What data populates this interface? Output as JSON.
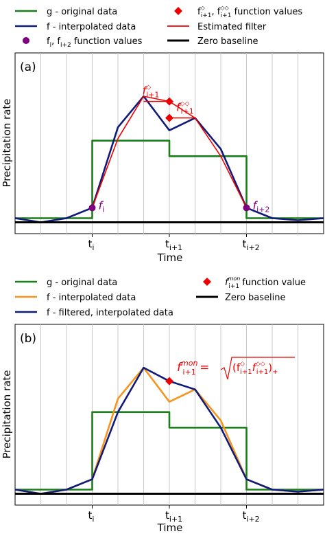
{
  "chart_data": [
    {
      "type": "line",
      "panel_label": "(a)",
      "xlabel": "Time",
      "ylabel": "Precipitation rate",
      "x_ticks": [
        {
          "x": 3,
          "text": "t",
          "sub": "i"
        },
        {
          "x": 6,
          "text": "t",
          "sub": "i+1"
        },
        {
          "x": 9,
          "text": "t",
          "sub": "i+2"
        }
      ],
      "xlim": [
        0,
        12
      ],
      "ylim": [
        -0.15,
        1.6
      ],
      "grid_x": true,
      "legend": [
        {
          "label": "g - original data",
          "color": "#1a7f1a"
        },
        {
          "label": "f - interpolated data",
          "color": "#101a78"
        },
        {
          "label": "f",
          "sub": "i",
          "label2": ", f",
          "sub2": "i+2",
          "label3": " function values",
          "color": "#800080"
        },
        {
          "label": "f",
          "sup": "◇",
          "sub": "i+1",
          "label2": ", f",
          "sup2": "◇◇",
          "sub2": "i+1",
          "label3": " function values",
          "color": "#ee0000"
        },
        {
          "label": "Estimated filter",
          "color": "#ee0000"
        },
        {
          "label": "Zero baseline",
          "color": "#000000"
        }
      ],
      "series": [
        {
          "name": "g - original data",
          "color": "#1a7f1a",
          "x": [
            0,
            3,
            3,
            6,
            6,
            9,
            9,
            12
          ],
          "y": [
            0.0,
            0.0,
            0.75,
            0.75,
            0.6,
            0.6,
            0.0,
            0.0
          ]
        },
        {
          "name": "f - interpolated data",
          "color": "#101a78",
          "x": [
            0,
            1,
            2,
            3,
            4,
            5,
            6,
            7,
            8,
            9,
            10,
            11,
            12
          ],
          "y": [
            0.0,
            -0.04,
            0.0,
            0.1,
            0.88,
            1.18,
            0.85,
            0.97,
            0.67,
            0.1,
            0.0,
            -0.02,
            0.0
          ]
        },
        {
          "name": "Estimated filter",
          "color": "#ee0000",
          "x": [
            3,
            4,
            5,
            6,
            7,
            8,
            9
          ],
          "y": [
            0.1,
            0.77,
            1.18,
            1.13,
            0.97,
            0.6,
            0.1
          ]
        },
        {
          "name": "Zero baseline",
          "color": "#000000",
          "x": [
            0,
            12
          ],
          "y": [
            -0.04,
            -0.04
          ]
        }
      ],
      "markers": [
        {
          "x": 3,
          "y": 0.1,
          "color": "#800080",
          "text": "f",
          "sub": "i"
        },
        {
          "x": 9,
          "y": 0.1,
          "color": "#800080",
          "text": "f",
          "sub": "i+2"
        },
        {
          "x": 6,
          "y": 1.13,
          "color": "#ee0000",
          "text": "f",
          "sup": "◇",
          "sub": "i+1",
          "arrow_from_x": 5
        },
        {
          "x": 6,
          "y": 0.97,
          "color": "#ee0000",
          "text": "f",
          "sup": "◇◇",
          "sub": "i+1",
          "arrow_from_x": 7
        }
      ]
    },
    {
      "type": "line",
      "panel_label": "(b)",
      "xlabel": "Time",
      "ylabel": "Precipitation rate",
      "x_ticks": [
        {
          "x": 3,
          "text": "t",
          "sub": "i"
        },
        {
          "x": 6,
          "text": "t",
          "sub": "i+1"
        },
        {
          "x": 9,
          "text": "t",
          "sub": "i+2"
        }
      ],
      "xlim": [
        0,
        12
      ],
      "ylim": [
        -0.15,
        1.6
      ],
      "grid_x": true,
      "legend": [
        {
          "label": "g - original data",
          "color": "#1a7f1a"
        },
        {
          "label": "f - interpolated data",
          "color": "#f7941d"
        },
        {
          "label": "f - filtered, interpolated data",
          "color": "#101a78"
        },
        {
          "label": "f",
          "sup": "mon",
          "sub": "i+1",
          "label2": " function value",
          "color": "#ee0000"
        },
        {
          "label": "Zero baseline",
          "color": "#000000"
        }
      ],
      "series": [
        {
          "name": "g - original data",
          "color": "#1a7f1a",
          "x": [
            0,
            3,
            3,
            6,
            6,
            9,
            9,
            12
          ],
          "y": [
            0.0,
            0.0,
            0.75,
            0.75,
            0.6,
            0.6,
            0.0,
            0.0
          ]
        },
        {
          "name": "f - interpolated data",
          "color": "#f7941d",
          "x": [
            0,
            1,
            2,
            3,
            4,
            5,
            6,
            7,
            8,
            9,
            10,
            11,
            12
          ],
          "y": [
            0.0,
            -0.04,
            0.0,
            0.1,
            0.88,
            1.18,
            0.85,
            0.97,
            0.67,
            0.1,
            0.0,
            -0.02,
            0.0
          ]
        },
        {
          "name": "f - filtered, interpolated data",
          "color": "#101a78",
          "x": [
            0,
            1,
            2,
            3,
            4,
            5,
            6,
            7,
            8,
            9,
            10,
            11,
            12
          ],
          "y": [
            0.0,
            -0.04,
            0.0,
            0.1,
            0.75,
            1.18,
            1.05,
            0.97,
            0.6,
            0.1,
            0.0,
            -0.02,
            0.0
          ]
        },
        {
          "name": "Zero baseline",
          "color": "#000000",
          "x": [
            0,
            12
          ],
          "y": [
            -0.04,
            -0.04
          ]
        }
      ],
      "markers": [
        {
          "x": 6,
          "y": 1.05,
          "color": "#ee0000"
        }
      ],
      "annotation": {
        "lhs_main": "f",
        "lhs_sup": "mon",
        "lhs_sub": "i+1",
        "eq": " = ",
        "rhs_open": "(f",
        "rhs_sup1": "◇",
        "rhs_sub1": "i+1",
        "rhs_mid": "f",
        "rhs_sup2": "◇◇",
        "rhs_sub2": "i+1",
        "rhs_close": ")",
        "rhs_plus": "+",
        "color": "#ee0000"
      }
    }
  ]
}
